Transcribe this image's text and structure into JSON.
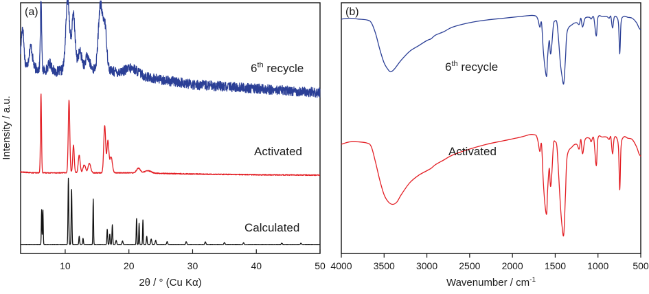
{
  "chart_data": [
    {
      "type": "line",
      "panel_label": "(a)",
      "xlabel": "2θ / ° (Cu Kα)",
      "ylabel": "Intensity / a.u.",
      "xlim": [
        3,
        50
      ],
      "xticks": [
        "10",
        "20",
        "30",
        "40",
        "50"
      ],
      "xtick_values": [
        10,
        20,
        30,
        40,
        50
      ],
      "y_ticks_shown": false,
      "series": [
        {
          "name": "6th recycle",
          "label_main": "6",
          "label_sup": "th",
          "label_rest": " recycle",
          "color": "#2b3f96",
          "noise": 0.06,
          "baseline": [
            [
              3,
              0.35
            ],
            [
              5,
              0.3
            ],
            [
              8,
              0.25
            ],
            [
              12,
              0.3
            ],
            [
              16,
              0.28
            ],
            [
              20,
              0.22
            ],
            [
              25,
              0.16
            ],
            [
              30,
              0.1
            ],
            [
              40,
              0.05
            ],
            [
              50,
              0.0
            ]
          ],
          "peaks": [
            [
              3.3,
              0.45,
              0.2
            ],
            [
              4.6,
              0.25,
              0.25
            ],
            [
              6.2,
              0.85,
              0.1
            ],
            [
              7.6,
              0.1,
              0.3
            ],
            [
              10.4,
              0.85,
              0.3
            ],
            [
              11.3,
              0.65,
              0.25
            ],
            [
              12.3,
              0.2,
              0.3
            ],
            [
              13.5,
              0.15,
              0.3
            ],
            [
              15.5,
              0.75,
              0.3
            ],
            [
              16.2,
              0.55,
              0.3
            ],
            [
              20.5,
              0.08,
              1.0
            ]
          ]
        },
        {
          "name": "Activated",
          "label_main": "Activated",
          "color": "#e31e24",
          "noise": 0.006,
          "baseline": [
            [
              3,
              0.04
            ],
            [
              5,
              0.03
            ],
            [
              10,
              0.03
            ],
            [
              20,
              0.03
            ],
            [
              30,
              0.015
            ],
            [
              40,
              0.005
            ],
            [
              50,
              0.0
            ]
          ],
          "peaks": [
            [
              6.2,
              1.0,
              0.08
            ],
            [
              10.6,
              0.92,
              0.12
            ],
            [
              11.3,
              0.35,
              0.12
            ],
            [
              12.2,
              0.22,
              0.15
            ],
            [
              13.0,
              0.1,
              0.2
            ],
            [
              13.8,
              0.12,
              0.2
            ],
            [
              16.2,
              0.6,
              0.15
            ],
            [
              16.7,
              0.4,
              0.15
            ],
            [
              17.2,
              0.2,
              0.2
            ],
            [
              21.5,
              0.06,
              0.3
            ],
            [
              23,
              0.03,
              0.5
            ]
          ]
        },
        {
          "name": "Calculated",
          "label_main": "Calculated",
          "color": "#111111",
          "noise": 0.003,
          "baseline": [
            [
              3,
              0
            ],
            [
              50,
              0
            ]
          ],
          "peaks": [
            [
              6.3,
              0.5,
              0.05
            ],
            [
              6.5,
              0.5,
              0.05
            ],
            [
              10.5,
              0.95,
              0.06
            ],
            [
              11.0,
              0.8,
              0.06
            ],
            [
              12.2,
              0.12,
              0.06
            ],
            [
              12.8,
              0.09,
              0.06
            ],
            [
              14.4,
              0.65,
              0.05
            ],
            [
              16.6,
              0.22,
              0.06
            ],
            [
              17.0,
              0.15,
              0.06
            ],
            [
              17.4,
              0.28,
              0.06
            ],
            [
              18.0,
              0.06,
              0.08
            ],
            [
              19.0,
              0.05,
              0.08
            ],
            [
              21.2,
              0.38,
              0.05
            ],
            [
              21.6,
              0.3,
              0.05
            ],
            [
              22.2,
              0.35,
              0.05
            ],
            [
              22.8,
              0.12,
              0.06
            ],
            [
              23.5,
              0.08,
              0.08
            ],
            [
              24.2,
              0.06,
              0.08
            ],
            [
              26,
              0.04,
              0.08
            ],
            [
              29,
              0.04,
              0.08
            ],
            [
              32,
              0.04,
              0.08
            ],
            [
              35,
              0.03,
              0.08
            ],
            [
              38,
              0.025,
              0.08
            ],
            [
              44,
              0.02,
              0.08
            ],
            [
              47,
              0.02,
              0.08
            ]
          ]
        }
      ]
    },
    {
      "type": "line",
      "panel_label": "(b)",
      "xlabel_main": "Wavenumber / cm",
      "xlabel_sup": "-1",
      "xlim": [
        4000,
        500
      ],
      "xticks": [
        "4000",
        "3500",
        "3000",
        "2500",
        "2000",
        "1500",
        "1000",
        "500"
      ],
      "xtick_values": [
        4000,
        3500,
        3000,
        2500,
        2000,
        1500,
        1000,
        500
      ],
      "y_ticks_shown": false,
      "series": [
        {
          "name": "6th recycle",
          "label_main": "6",
          "label_sup": "th",
          "label_rest": " recycle",
          "color": "#2b3f96",
          "points": [
            [
              4000,
              0.94
            ],
            [
              3900,
              0.95
            ],
            [
              3800,
              0.94
            ],
            [
              3700,
              0.93
            ],
            [
              3650,
              0.9
            ],
            [
              3600,
              0.78
            ],
            [
              3550,
              0.6
            ],
            [
              3500,
              0.45
            ],
            [
              3450,
              0.37
            ],
            [
              3420,
              0.35
            ],
            [
              3380,
              0.38
            ],
            [
              3300,
              0.48
            ],
            [
              3200,
              0.58
            ],
            [
              3100,
              0.64
            ],
            [
              3000,
              0.7
            ],
            [
              2950,
              0.72
            ],
            [
              2900,
              0.76
            ],
            [
              2800,
              0.8
            ],
            [
              2700,
              0.85
            ],
            [
              2500,
              0.9
            ],
            [
              2300,
              0.93
            ],
            [
              2100,
              0.95
            ],
            [
              1900,
              0.97
            ],
            [
              1800,
              0.98
            ],
            [
              1750,
              0.98
            ],
            [
              1720,
              0.97
            ],
            [
              1700,
              0.93
            ],
            [
              1680,
              0.85
            ],
            [
              1660,
              0.9
            ],
            [
              1640,
              0.6
            ],
            [
              1620,
              0.4
            ],
            [
              1600,
              0.3
            ],
            [
              1590,
              0.5
            ],
            [
              1570,
              0.7
            ],
            [
              1555,
              0.55
            ],
            [
              1540,
              0.65
            ],
            [
              1520,
              0.88
            ],
            [
              1500,
              0.92
            ],
            [
              1480,
              0.9
            ],
            [
              1460,
              0.7
            ],
            [
              1440,
              0.45
            ],
            [
              1420,
              0.3
            ],
            [
              1400,
              0.22
            ],
            [
              1380,
              0.5
            ],
            [
              1360,
              0.8
            ],
            [
              1300,
              0.88
            ],
            [
              1250,
              0.9
            ],
            [
              1220,
              0.88
            ],
            [
              1200,
              0.95
            ],
            [
              1180,
              0.85
            ],
            [
              1150,
              0.95
            ],
            [
              1100,
              0.96
            ],
            [
              1080,
              0.94
            ],
            [
              1050,
              0.96
            ],
            [
              1020,
              0.75
            ],
            [
              1000,
              0.96
            ],
            [
              950,
              0.97
            ],
            [
              900,
              0.97
            ],
            [
              870,
              0.95
            ],
            [
              850,
              0.97
            ],
            [
              830,
              0.84
            ],
            [
              810,
              0.96
            ],
            [
              780,
              0.96
            ],
            [
              760,
              0.88
            ],
            [
              745,
              0.55
            ],
            [
              730,
              0.9
            ],
            [
              700,
              0.97
            ],
            [
              650,
              0.96
            ],
            [
              600,
              0.95
            ],
            [
              550,
              0.9
            ],
            [
              520,
              0.84
            ],
            [
              500,
              0.82
            ]
          ]
        },
        {
          "name": "Activated",
          "label_main": "Activated",
          "color": "#e31e24",
          "points": [
            [
              4000,
              0.8
            ],
            [
              3900,
              0.82
            ],
            [
              3800,
              0.82
            ],
            [
              3700,
              0.81
            ],
            [
              3650,
              0.78
            ],
            [
              3600,
              0.65
            ],
            [
              3550,
              0.5
            ],
            [
              3500,
              0.38
            ],
            [
              3450,
              0.32
            ],
            [
              3400,
              0.3
            ],
            [
              3350,
              0.32
            ],
            [
              3300,
              0.38
            ],
            [
              3200,
              0.48
            ],
            [
              3100,
              0.54
            ],
            [
              3000,
              0.58
            ],
            [
              2950,
              0.6
            ],
            [
              2900,
              0.63
            ],
            [
              2800,
              0.67
            ],
            [
              2700,
              0.71
            ],
            [
              2500,
              0.76
            ],
            [
              2300,
              0.8
            ],
            [
              2100,
              0.83
            ],
            [
              1900,
              0.86
            ],
            [
              1800,
              0.88
            ],
            [
              1750,
              0.88
            ],
            [
              1720,
              0.87
            ],
            [
              1700,
              0.82
            ],
            [
              1680,
              0.74
            ],
            [
              1660,
              0.8
            ],
            [
              1640,
              0.5
            ],
            [
              1620,
              0.3
            ],
            [
              1600,
              0.22
            ],
            [
              1590,
              0.4
            ],
            [
              1570,
              0.6
            ],
            [
              1555,
              0.45
            ],
            [
              1540,
              0.55
            ],
            [
              1520,
              0.8
            ],
            [
              1500,
              0.82
            ],
            [
              1480,
              0.78
            ],
            [
              1460,
              0.55
            ],
            [
              1440,
              0.3
            ],
            [
              1420,
              0.12
            ],
            [
              1400,
              0.05
            ],
            [
              1380,
              0.38
            ],
            [
              1360,
              0.7
            ],
            [
              1300,
              0.78
            ],
            [
              1250,
              0.8
            ],
            [
              1220,
              0.76
            ],
            [
              1200,
              0.84
            ],
            [
              1180,
              0.72
            ],
            [
              1150,
              0.84
            ],
            [
              1100,
              0.85
            ],
            [
              1080,
              0.82
            ],
            [
              1050,
              0.85
            ],
            [
              1020,
              0.62
            ],
            [
              1000,
              0.85
            ],
            [
              950,
              0.86
            ],
            [
              900,
              0.86
            ],
            [
              870,
              0.84
            ],
            [
              850,
              0.86
            ],
            [
              830,
              0.72
            ],
            [
              810,
              0.85
            ],
            [
              780,
              0.85
            ],
            [
              760,
              0.76
            ],
            [
              745,
              0.42
            ],
            [
              730,
              0.78
            ],
            [
              700,
              0.86
            ],
            [
              650,
              0.85
            ],
            [
              600,
              0.84
            ],
            [
              550,
              0.78
            ],
            [
              520,
              0.72
            ],
            [
              500,
              0.7
            ]
          ]
        }
      ]
    }
  ]
}
